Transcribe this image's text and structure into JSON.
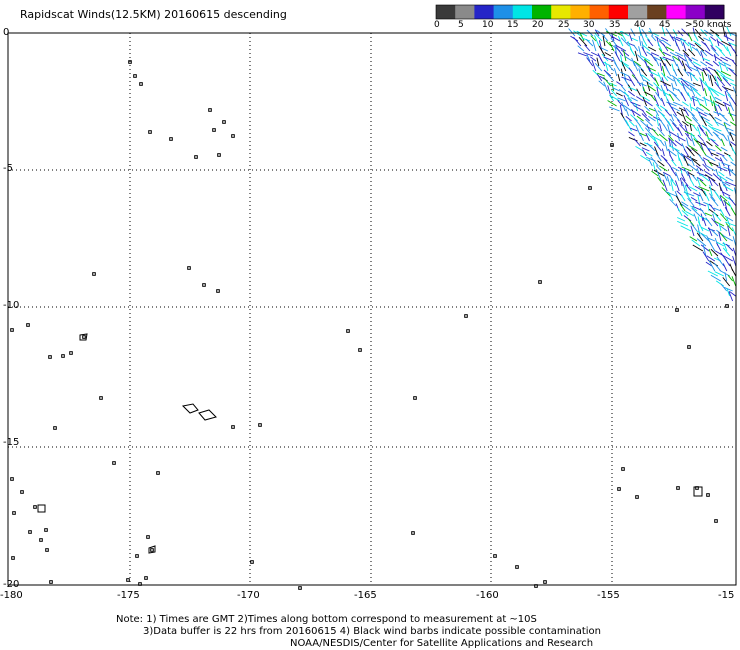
{
  "title": "Rapidscat Winds(12.5KM) 20160615 descending",
  "legend": {
    "colors": [
      "#3a3a3a",
      "#8a8a8a",
      "#2525c8",
      "#1e90e8",
      "#00e5e5",
      "#00b400",
      "#e8e800",
      "#ffb000",
      "#ff6000",
      "#ff0000",
      "#a0a0a0",
      "#6a4020",
      "#ff00ff",
      "#8b00c8",
      "#300060"
    ],
    "labels": [
      "0",
      "5",
      "10",
      "15",
      "20",
      "25",
      "30",
      "35",
      "40",
      "45",
      ">50 knots"
    ]
  },
  "map": {
    "lat_labels": [
      "0",
      "-5",
      "-10",
      "-15",
      "-20"
    ],
    "lon_labels": [
      "-180",
      "-175",
      "-170",
      "-165",
      "-160",
      "-155",
      "-15"
    ]
  },
  "notes": [
    "Note: 1) Times are GMT 2)Times along bottom correspond to measurement at ~10S",
    "3)Data buffer is 22 hrs from 20160615 4) Black wind barbs indicate possible contamination",
    "NOAA/NESDIS/Center for Satellite Applications and Research"
  ]
}
